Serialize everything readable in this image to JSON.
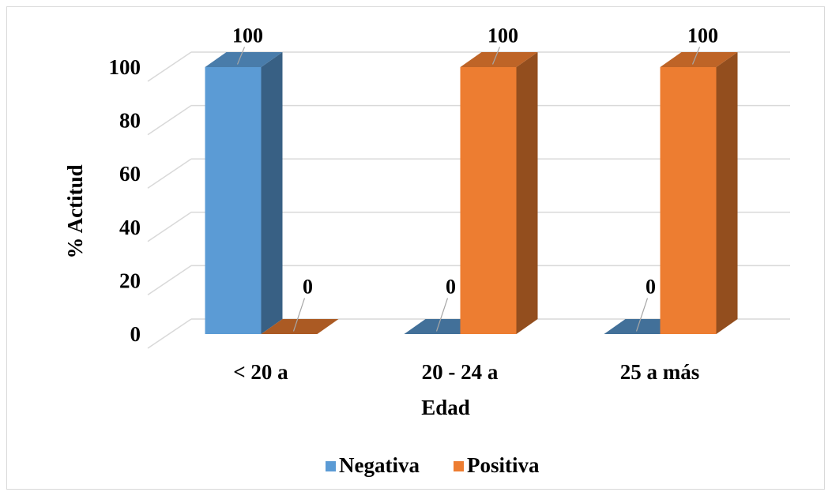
{
  "chart_data": {
    "type": "bar",
    "title": "",
    "xlabel": "Edad",
    "ylabel": "% Actitud",
    "categories": [
      "< 20 a",
      "20 - 24 a",
      "25 a más"
    ],
    "series": [
      {
        "name": "Negativa",
        "values": [
          100,
          0,
          0
        ],
        "color": "#5b9bd5"
      },
      {
        "name": "Positiva",
        "values": [
          0,
          100,
          100
        ],
        "color": "#ed7d31"
      }
    ],
    "ylim": [
      0,
      100
    ],
    "yticks": [
      0,
      20,
      40,
      60,
      80,
      100
    ],
    "grid": true,
    "legend": "bottom",
    "style": "3d-column"
  }
}
